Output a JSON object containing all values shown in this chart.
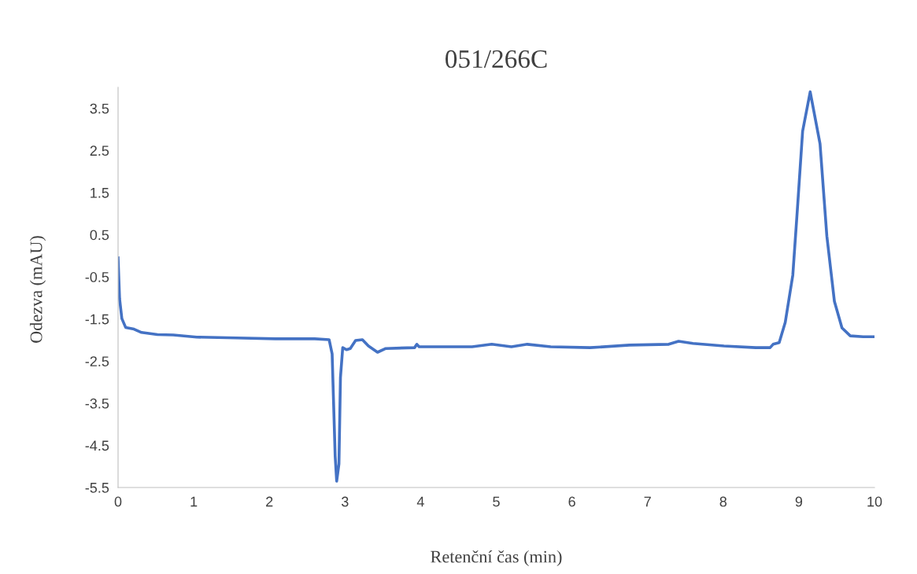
{
  "chart_data": {
    "type": "line",
    "title": "051/266C",
    "xlabel": "Retenční čas (min)",
    "ylabel": "Odezva (mAU)",
    "xlim": [
      0,
      10
    ],
    "xticks": [
      0,
      1,
      2,
      3,
      4,
      5,
      6,
      7,
      8,
      9,
      10
    ],
    "ylim": [
      -5.5,
      4.0
    ],
    "yticks": [
      -5.5,
      -4.5,
      -3.5,
      -2.5,
      -1.5,
      -0.5,
      0.5,
      1.5,
      2.5,
      3.5
    ],
    "grid": false,
    "legend": false,
    "marker": "none",
    "line_style": "solid",
    "series": [
      {
        "color": "#4472c4",
        "x": [
          0,
          0.02,
          0.05,
          0.1,
          0.21,
          0.31,
          0.52,
          0.73,
          1.04,
          1.56,
          2.08,
          2.6,
          2.79,
          2.83,
          2.87,
          2.89,
          2.92,
          2.94,
          2.97,
          3.02,
          3.07,
          3.14,
          3.23,
          3.31,
          3.43,
          3.54,
          3.92,
          3.95,
          3.98,
          4.16,
          4.68,
          4.94,
          5.2,
          5.41,
          5.72,
          6.24,
          6.76,
          7.28,
          7.41,
          7.6,
          8.01,
          8.43,
          8.62,
          8.66,
          8.74,
          8.82,
          8.92,
          8.98,
          9.05,
          9.15,
          9.28,
          9.37,
          9.47,
          9.57,
          9.68,
          9.85,
          10.0
        ],
        "values": [
          -0.05,
          -1.02,
          -1.49,
          -1.7,
          -1.74,
          -1.82,
          -1.87,
          -1.88,
          -1.93,
          -1.95,
          -1.97,
          -1.97,
          -1.99,
          -2.33,
          -4.75,
          -5.35,
          -4.94,
          -2.89,
          -2.18,
          -2.23,
          -2.2,
          -2.01,
          -1.99,
          -2.14,
          -2.29,
          -2.2,
          -2.18,
          -2.1,
          -2.16,
          -2.16,
          -2.16,
          -2.1,
          -2.16,
          -2.1,
          -2.16,
          -2.18,
          -2.12,
          -2.1,
          -2.03,
          -2.08,
          -2.14,
          -2.18,
          -2.18,
          -2.1,
          -2.06,
          -1.58,
          -0.46,
          1.09,
          2.96,
          3.89,
          2.66,
          0.47,
          -1.08,
          -1.71,
          -1.9,
          -1.92,
          -1.92
        ]
      }
    ]
  }
}
